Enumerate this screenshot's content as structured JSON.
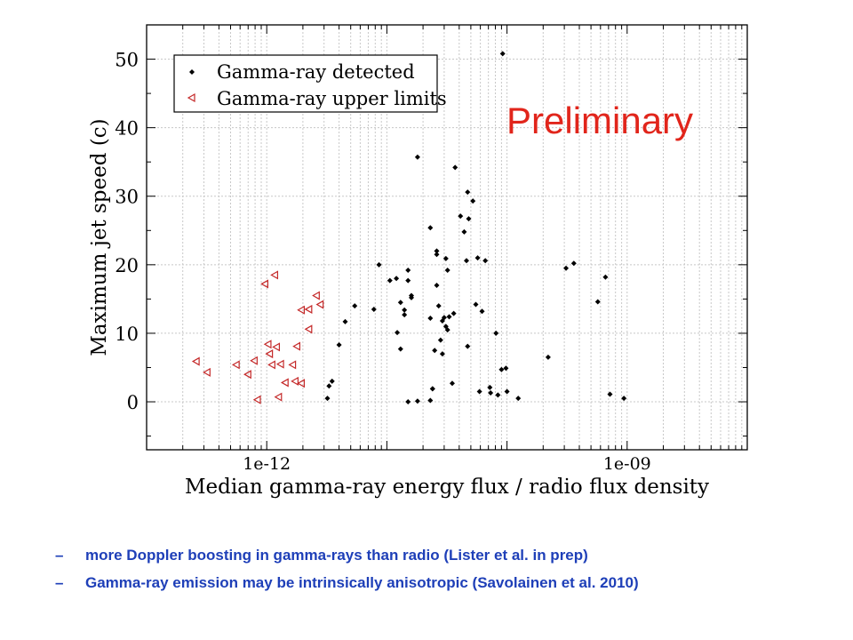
{
  "chart_data": {
    "type": "scatter",
    "title": "",
    "watermark": "Preliminary",
    "xlabel": "Median gamma-ray energy flux / radio flux density",
    "ylabel": "Maximum jet speed (c)",
    "xscale": "log",
    "xlim": [
      1e-13,
      1e-08
    ],
    "ylim": [
      -7,
      55
    ],
    "xticks": [
      {
        "value": 1e-12,
        "label": "1e-12"
      },
      {
        "value": 1e-09,
        "label": "1e-09"
      }
    ],
    "yticks": [
      0,
      10,
      20,
      30,
      40,
      50
    ],
    "grid": true,
    "legend_position": "top-left",
    "series": [
      {
        "name": "Gamma-ray detected",
        "marker": "diamond",
        "color": "#000000",
        "x": [
          9.2e-11,
          8.6e-12,
          1.3e-11,
          1.8e-11,
          1.5e-11,
          1.4e-11,
          1.6e-11,
          1.6e-11,
          2.3e-11,
          2.6e-11,
          3.7e-11,
          2.6e-11,
          4.7e-11,
          4.1e-11,
          5.5e-11,
          5.2e-11,
          3.2e-11,
          5.7e-11,
          4.8e-11,
          4.4e-11,
          2.7e-11,
          3e-11,
          3.1e-11,
          2.3e-11,
          3.6e-11,
          3.3e-11,
          4.6e-11,
          6.6e-11,
          2.9e-11,
          3.1e-11,
          2.5e-11,
          2.8e-11,
          2.9e-11,
          3.2e-11,
          2.4e-11,
          2.4e-11,
          1.8e-11,
          1.5e-11,
          1.4e-11,
          1.3e-11,
          1.2e-11,
          1.06e-11,
          7.8e-12,
          5.4e-12,
          4.5e-12,
          4e-12,
          3.5e-12,
          3.3e-12,
          3.2e-12,
          8.1e-11,
          9e-11,
          9.8e-11,
          7.2e-11,
          1e-10,
          2.2e-10,
          3.1e-10,
          3.6e-10,
          5.7e-10,
          6.6e-10,
          7.2e-10,
          9.4e-10,
          6.2e-11,
          5.9e-11,
          7.3e-11,
          8.4e-11,
          1.24e-10,
          1.5e-11,
          1.22e-11,
          4.7e-11,
          3.5e-11,
          2.3e-11,
          2.6e-11
        ],
        "y": [
          50.8,
          20.0,
          14.5,
          35.7,
          19.2,
          13.4,
          15.2,
          15.5,
          25.4,
          22.0,
          34.2,
          21.5,
          30.6,
          27.1,
          14.2,
          29.3,
          19.2,
          21.0,
          26.7,
          24.8,
          14.0,
          12.3,
          20.9,
          12.2,
          12.9,
          12.4,
          20.6,
          20.6,
          11.8,
          11.0,
          7.5,
          9.0,
          7.0,
          10.5,
          1.9,
          1.9,
          0.1,
          17.7,
          12.7,
          7.7,
          18.0,
          17.7,
          13.5,
          14.0,
          11.7,
          8.3,
          3.0,
          2.3,
          0.5,
          10.0,
          4.7,
          4.9,
          2.1,
          1.5,
          6.5,
          19.5,
          20.2,
          14.6,
          18.2,
          1.1,
          0.5,
          13.2,
          1.5,
          1.3,
          1.0,
          0.5,
          0.0,
          10.1,
          8.1,
          2.7,
          0.2,
          17.0
        ]
      },
      {
        "name": "Gamma-ray upper limits",
        "marker": "triangle-left",
        "color": "#c42828",
        "x": [
          2.6e-13,
          3.2e-13,
          5.6e-13,
          7e-13,
          7.9e-13,
          9.7e-13,
          8.4e-13,
          1.03e-12,
          1.06e-12,
          1.11e-12,
          1.17e-12,
          1.31e-12,
          1.21e-12,
          1.43e-12,
          1.65e-12,
          1.73e-12,
          1.79e-12,
          1.95e-12,
          2.6e-12,
          2.25e-12,
          2.25e-12,
          2.8e-12,
          1.95e-12,
          1.26e-12
        ],
        "y": [
          5.9,
          4.3,
          5.4,
          4.0,
          6.0,
          17.2,
          0.3,
          8.4,
          7.0,
          5.4,
          18.5,
          5.5,
          8.0,
          2.8,
          5.4,
          3.0,
          8.1,
          13.4,
          15.5,
          13.5,
          10.6,
          14.2,
          2.7,
          0.7
        ]
      }
    ]
  },
  "notes": [
    {
      "dash": "–",
      "text": "more Doppler boosting in gamma-rays than radio (Lister et al. in prep)"
    },
    {
      "dash": "–",
      "text": "Gamma-ray emission may be intrinsically anisotropic (Savolainen et al. 2010)"
    }
  ]
}
